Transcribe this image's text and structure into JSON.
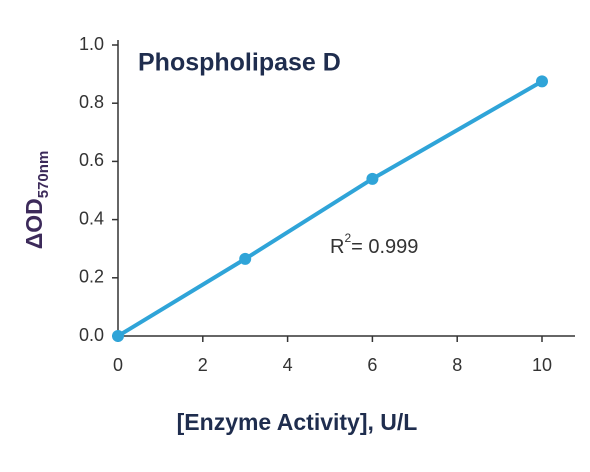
{
  "chart_data": {
    "type": "scatter",
    "title": "Phospholipase D",
    "x_label": "[Enzyme Activity], U/L",
    "y_label": {
      "main": "ΔOD",
      "sub": "570nm"
    },
    "annotation": {
      "base": "R",
      "sup": "2",
      "rest": "= 0.999"
    },
    "series": [
      {
        "color": "#2fa4d8",
        "line": true,
        "x": [
          0,
          3,
          6,
          10
        ],
        "values": [
          0,
          0.265,
          0.54,
          0.875
        ]
      }
    ],
    "xlim": [
      0,
      10.8
    ],
    "xticks": [
      0,
      2,
      4,
      6,
      8,
      10
    ],
    "ylim": [
      0,
      1
    ],
    "yticks": [
      {
        "value": 0,
        "label": "0.0"
      },
      0.2,
      0.4,
      0.6,
      0.8,
      {
        "value": 1,
        "label": "1.0"
      }
    ]
  }
}
